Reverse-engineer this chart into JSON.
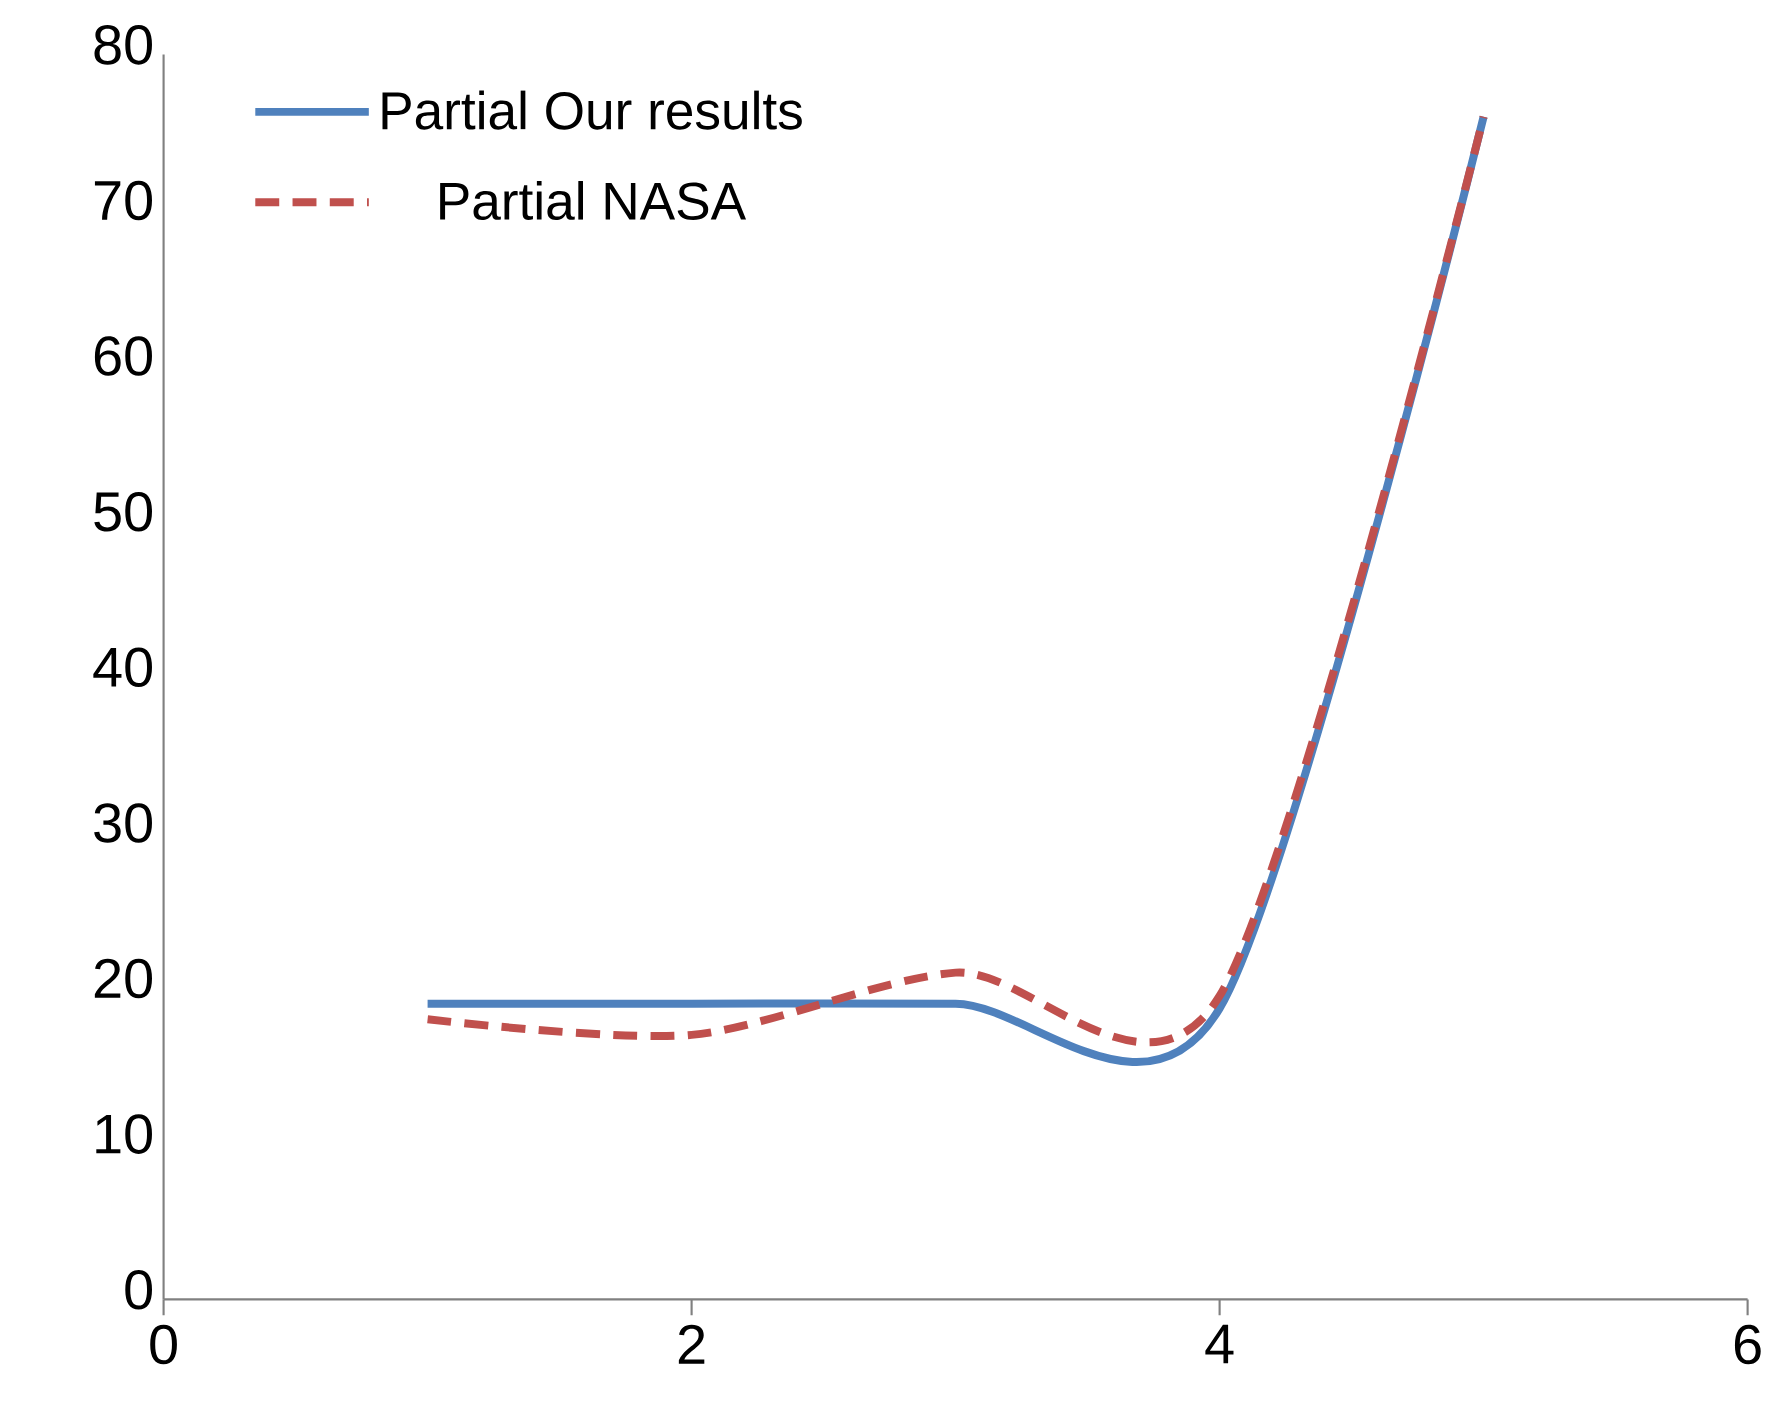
{
  "chart_data": {
    "type": "line",
    "x": [
      1,
      2,
      3,
      4,
      5
    ],
    "series": [
      {
        "name": "Partial Our results",
        "color": "#4f81bd",
        "line_style": "solid",
        "values": [
          19,
          19,
          19,
          18.7,
          76
        ]
      },
      {
        "name": "Partial NASA",
        "color": "#c0504d",
        "line_style": "dashed",
        "values": [
          18,
          17,
          21,
          19.5,
          76
        ]
      }
    ],
    "xlim": [
      0,
      6
    ],
    "xticks": [
      0,
      2,
      4,
      6
    ],
    "ylim": [
      0,
      80
    ],
    "yticks": [
      0,
      10,
      20,
      30,
      40,
      50,
      60,
      70,
      80
    ],
    "grid": false,
    "legend": "top left",
    "marker": "none"
  }
}
